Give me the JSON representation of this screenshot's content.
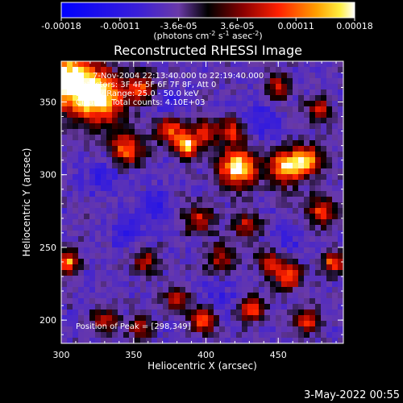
{
  "chart_data": {
    "type": "heatmap",
    "title": "Reconstructed RHESSI Image",
    "xlabel": "Heliocentric X (arcsec)",
    "ylabel": "Heliocentric Y (arcsec)",
    "xlim": [
      300,
      495
    ],
    "ylim": [
      184,
      378
    ],
    "x_ticks": [
      "300",
      "350",
      "400",
      "450"
    ],
    "y_ticks": [
      "200",
      "250",
      "300",
      "350"
    ],
    "colorbar": {
      "range": [
        -0.00018,
        0.00018
      ],
      "tick_labels": [
        "-0.00018",
        "-0.00011",
        "-3.6e-05",
        "3.6e-05",
        "0.00011",
        "0.00018"
      ],
      "unit_label_parts": [
        "(photons cm",
        "-2",
        " s",
        "-1",
        " asec",
        "-2",
        ")"
      ]
    },
    "annotations": {
      "time_range": "7-Nov-2004 22:13:40.000 to 22:19:40.000",
      "detectors": "Detectors: 3F 4F 5F 6F 7F 8F, Att 0",
      "energy_range": "Energy Range: 25.0 - 50.0 keV",
      "clean_counts": "Clean     Total counts: 4.10E+03",
      "peak_position": "Position of Peak = [298,349]"
    },
    "hotspots": [
      {
        "x": 305,
        "y": 365,
        "amp": 1.1,
        "sigma": 14
      },
      {
        "x": 327,
        "y": 352,
        "amp": 0.9,
        "sigma": 12
      },
      {
        "x": 355,
        "y": 360,
        "amp": 0.6,
        "sigma": 7
      },
      {
        "x": 375,
        "y": 332,
        "amp": 0.7,
        "sigma": 7
      },
      {
        "x": 387,
        "y": 320,
        "amp": 0.9,
        "sigma": 6
      },
      {
        "x": 345,
        "y": 318,
        "amp": 0.7,
        "sigma": 8
      },
      {
        "x": 400,
        "y": 330,
        "amp": 0.6,
        "sigma": 6
      },
      {
        "x": 422,
        "y": 305,
        "amp": 1.05,
        "sigma": 9
      },
      {
        "x": 418,
        "y": 330,
        "amp": 0.6,
        "sigma": 6
      },
      {
        "x": 455,
        "y": 305,
        "amp": 0.9,
        "sigma": 8
      },
      {
        "x": 470,
        "y": 310,
        "amp": 0.8,
        "sigma": 7
      },
      {
        "x": 480,
        "y": 275,
        "amp": 0.6,
        "sigma": 7
      },
      {
        "x": 450,
        "y": 360,
        "amp": 0.5,
        "sigma": 6
      },
      {
        "x": 478,
        "y": 345,
        "amp": 0.5,
        "sigma": 6
      },
      {
        "x": 395,
        "y": 270,
        "amp": 0.5,
        "sigma": 7
      },
      {
        "x": 428,
        "y": 265,
        "amp": 0.5,
        "sigma": 6
      },
      {
        "x": 410,
        "y": 243,
        "amp": 0.45,
        "sigma": 7
      },
      {
        "x": 445,
        "y": 240,
        "amp": 0.6,
        "sigma": 6
      },
      {
        "x": 305,
        "y": 240,
        "amp": 0.8,
        "sigma": 5
      },
      {
        "x": 358,
        "y": 240,
        "amp": 0.45,
        "sigma": 6
      },
      {
        "x": 380,
        "y": 215,
        "amp": 0.45,
        "sigma": 6
      },
      {
        "x": 398,
        "y": 200,
        "amp": 0.75,
        "sigma": 6
      },
      {
        "x": 458,
        "y": 230,
        "amp": 0.75,
        "sigma": 6
      },
      {
        "x": 432,
        "y": 208,
        "amp": 0.7,
        "sigma": 6
      },
      {
        "x": 470,
        "y": 200,
        "amp": 0.6,
        "sigma": 6
      },
      {
        "x": 330,
        "y": 200,
        "amp": 0.5,
        "sigma": 6
      },
      {
        "x": 355,
        "y": 195,
        "amp": 0.45,
        "sigma": 6
      },
      {
        "x": 488,
        "y": 240,
        "amp": 0.7,
        "sigma": 5
      }
    ],
    "cold_spots": [
      {
        "x": 375,
        "y": 345,
        "amp": 0.5,
        "sigma": 8
      },
      {
        "x": 440,
        "y": 335,
        "amp": 0.45,
        "sigma": 9
      },
      {
        "x": 365,
        "y": 280,
        "amp": 0.5,
        "sigma": 8
      },
      {
        "x": 328,
        "y": 300,
        "amp": 0.45,
        "sigma": 8
      },
      {
        "x": 345,
        "y": 260,
        "amp": 0.5,
        "sigma": 7
      },
      {
        "x": 455,
        "y": 255,
        "amp": 0.4,
        "sigma": 7
      },
      {
        "x": 410,
        "y": 215,
        "amp": 0.35,
        "sigma": 8
      }
    ]
  },
  "footer": {
    "timestamp": "3-May-2022 00:55"
  }
}
